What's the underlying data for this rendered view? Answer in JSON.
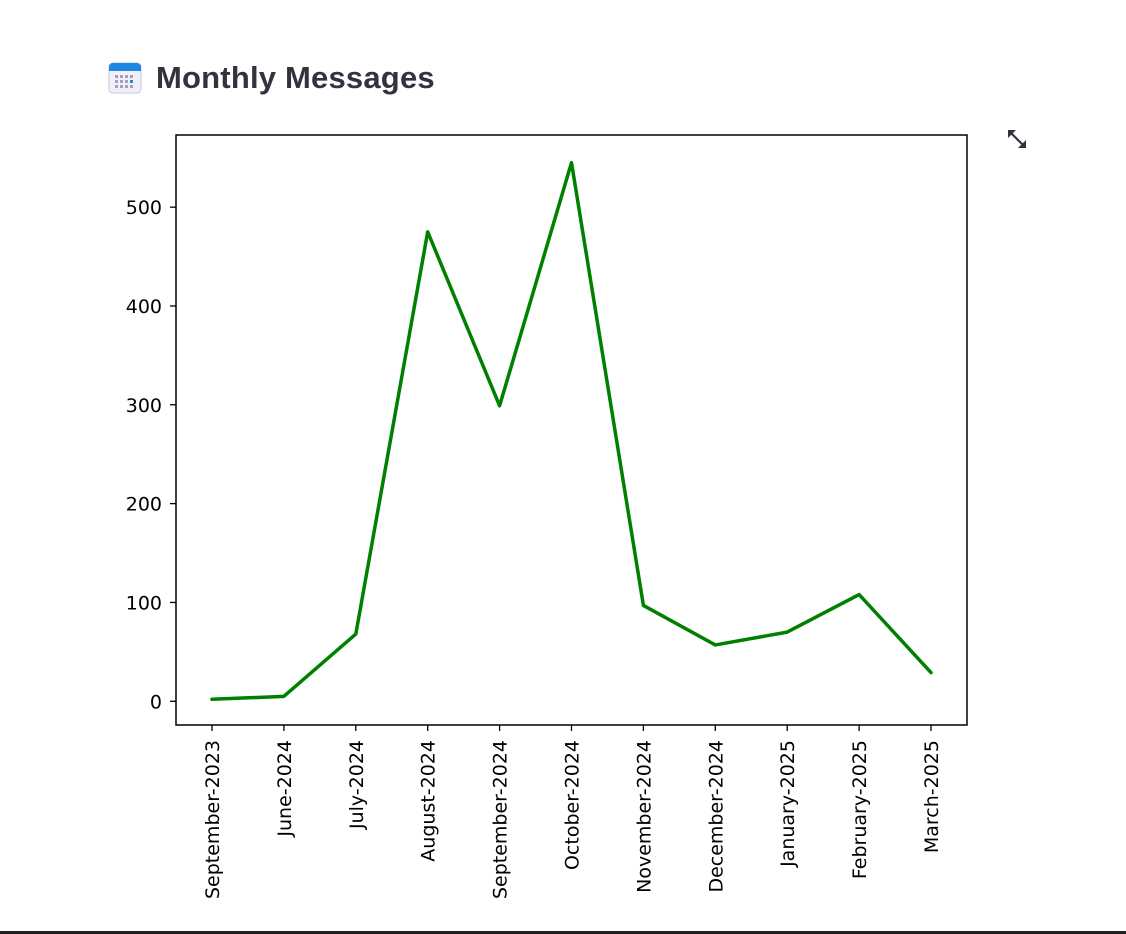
{
  "header": {
    "title": "Monthly Messages",
    "icon": "calendar-icon"
  },
  "toolbar": {
    "expand_icon": "fullscreen-expand-icon"
  },
  "chart_data": {
    "type": "line",
    "title": "",
    "xlabel": "",
    "ylabel": "",
    "categories": [
      "September-2023",
      "June-2024",
      "July-2024",
      "August-2024",
      "September-2024",
      "October-2024",
      "November-2024",
      "December-2024",
      "January-2025",
      "February-2025",
      "March-2025"
    ],
    "series": [
      {
        "values": [
          2,
          5,
          68,
          475,
          299,
          545,
          97,
          57,
          70,
          108,
          29
        ],
        "color": "#008000"
      }
    ],
    "ylim": [
      -24,
      573
    ],
    "yticks": [
      0,
      100,
      200,
      300,
      400,
      500
    ],
    "grid": false
  }
}
